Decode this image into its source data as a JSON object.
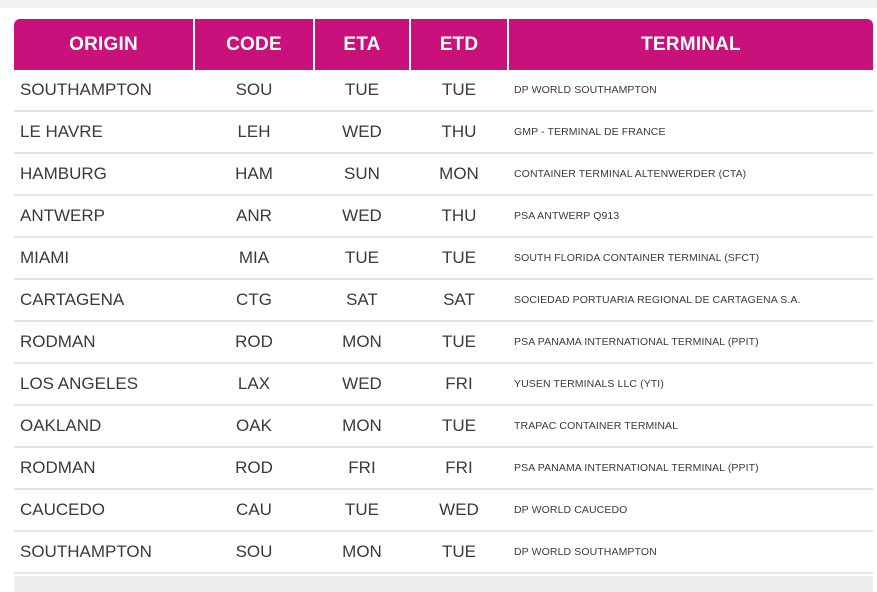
{
  "colors": {
    "header_bg": "#c8117b",
    "header_text": "#ffffff",
    "row_text": "#3a3a3a",
    "row_divider": "#e4e4e4"
  },
  "table": {
    "headers": {
      "origin": "ORIGIN",
      "code": "CODE",
      "eta": "ETA",
      "etd": "ETD",
      "terminal": "TERMINAL"
    },
    "rows": [
      {
        "origin": "SOUTHAMPTON",
        "code": "SOU",
        "eta": "TUE",
        "etd": "TUE",
        "terminal": "DP WORLD SOUTHAMPTON"
      },
      {
        "origin": "LE HAVRE",
        "code": "LEH",
        "eta": "WED",
        "etd": "THU",
        "terminal": "GMP - TERMINAL DE FRANCE"
      },
      {
        "origin": "HAMBURG",
        "code": "HAM",
        "eta": "SUN",
        "etd": "MON",
        "terminal": "CONTAINER TERMINAL ALTENWERDER (CTA)"
      },
      {
        "origin": "ANTWERP",
        "code": "ANR",
        "eta": "WED",
        "etd": "THU",
        "terminal": "PSA ANTWERP Q913"
      },
      {
        "origin": "MIAMI",
        "code": "MIA",
        "eta": "TUE",
        "etd": "TUE",
        "terminal": "SOUTH FLORIDA CONTAINER TERMINAL (SFCT)"
      },
      {
        "origin": "CARTAGENA",
        "code": "CTG",
        "eta": "SAT",
        "etd": "SAT",
        "terminal": "SOCIEDAD PORTUARIA REGIONAL DE CARTAGENA S.A."
      },
      {
        "origin": "RODMAN",
        "code": "ROD",
        "eta": "MON",
        "etd": "TUE",
        "terminal": "PSA PANAMA INTERNATIONAL TERMINAL (PPIT)"
      },
      {
        "origin": "LOS ANGELES",
        "code": "LAX",
        "eta": "WED",
        "etd": "FRI",
        "terminal": "YUSEN TERMINALS LLC (YTI)"
      },
      {
        "origin": "OAKLAND",
        "code": "OAK",
        "eta": "MON",
        "etd": "TUE",
        "terminal": "TRAPAC CONTAINER TERMINAL"
      },
      {
        "origin": "RODMAN",
        "code": "ROD",
        "eta": "FRI",
        "etd": "FRI",
        "terminal": "PSA PANAMA INTERNATIONAL TERMINAL (PPIT)"
      },
      {
        "origin": "CAUCEDO",
        "code": "CAU",
        "eta": "TUE",
        "etd": "WED",
        "terminal": "DP WORLD CAUCEDO"
      },
      {
        "origin": "SOUTHAMPTON",
        "code": "SOU",
        "eta": "MON",
        "etd": "TUE",
        "terminal": "DP WORLD SOUTHAMPTON"
      }
    ]
  }
}
